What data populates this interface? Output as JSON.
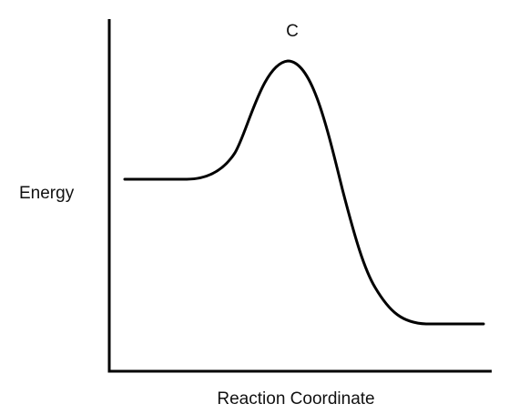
{
  "diagram": {
    "y_axis_label": "Energy",
    "x_axis_label": "Reaction Coordinate",
    "peak_label": "C"
  },
  "colors": {
    "line": "#000000",
    "text": "#111111",
    "background": "#ffffff"
  }
}
